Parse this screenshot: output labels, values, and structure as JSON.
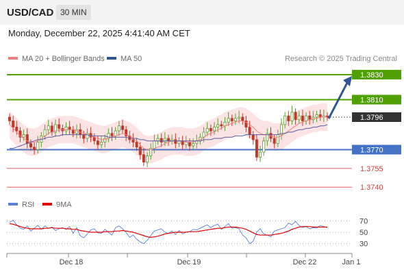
{
  "header": {
    "symbol": "USD/CAD",
    "timeframe": "30 MIN"
  },
  "timestamp": "Monday, December 22, 2025 4:41:40 AM CET",
  "legend": {
    "bollinger": {
      "label": "MA 20 + Bollinger Bands",
      "color": "#f08080"
    },
    "ma50": {
      "label": "MA 50",
      "color": "#2f5597"
    }
  },
  "copyright": "Research © 2025 Trading Central",
  "rsi_legend": {
    "rsi": {
      "label": "RSI",
      "color": "#5b7fd6"
    },
    "ma": {
      "label": "9MA",
      "color": "#e00000"
    }
  },
  "chart_data": [
    {
      "type": "candlestick",
      "title": "USD/CAD 30 MIN",
      "ylim": [
        1.3733,
        1.3836
      ],
      "x_ticks": [
        "Dec 18",
        "Dec 19",
        "Dec 22",
        "Jan 1"
      ],
      "levels": [
        {
          "value": 1.383,
          "label": "1.3830",
          "kind": "resistance",
          "color": "#4fa000"
        },
        {
          "value": 1.381,
          "label": "1.3810",
          "kind": "resistance",
          "color": "#4fa000"
        },
        {
          "value": 1.3796,
          "label": "1.3796",
          "kind": "last",
          "color": "#333333"
        },
        {
          "value": 1.377,
          "label": "1.3770",
          "kind": "pivot",
          "color": "#4472c4"
        },
        {
          "value": 1.3755,
          "label": "1.3755",
          "kind": "support",
          "color": "#e06060"
        },
        {
          "value": 1.374,
          "label": "1.3740",
          "kind": "support",
          "color": "#e06060"
        }
      ],
      "projection": {
        "from": 1.3796,
        "to": 1.383,
        "color": "#2f5597"
      },
      "series_close": [
        1.3793,
        1.3788,
        1.3785,
        1.378,
        1.3782,
        1.3775,
        1.3772,
        1.377,
        1.3776,
        1.3781,
        1.3786,
        1.3789,
        1.3784,
        1.379,
        1.3787,
        1.3785,
        1.3788,
        1.3786,
        1.3783,
        1.3786,
        1.3782,
        1.3779,
        1.3783,
        1.378,
        1.3777,
        1.3774,
        1.3776,
        1.3779,
        1.3783,
        1.3781,
        1.3785,
        1.3789,
        1.3786,
        1.3781,
        1.3778,
        1.3776,
        1.3772,
        1.3766,
        1.376,
        1.3765,
        1.3771,
        1.3777,
        1.3779,
        1.3776,
        1.3779,
        1.3777,
        1.3778,
        1.3775,
        1.3777,
        1.3774,
        1.3776,
        1.3773,
        1.3775,
        1.3777,
        1.378,
        1.3784,
        1.3787,
        1.3785,
        1.3788,
        1.379,
        1.3789,
        1.3792,
        1.3795,
        1.3793,
        1.3795,
        1.3796,
        1.3793,
        1.3788,
        1.3782,
        1.3778,
        1.3764,
        1.3768,
        1.3777,
        1.3783,
        1.3779,
        1.3775,
        1.3782,
        1.379,
        1.3797,
        1.3793,
        1.38,
        1.3794,
        1.3797,
        1.3793,
        1.3797,
        1.3794,
        1.3796,
        1.3798,
        1.3796,
        1.3797,
        1.3796
      ],
      "ma20": [
        1.379,
        1.3787,
        1.3784,
        1.3781,
        1.3779,
        1.3777,
        1.3776,
        1.3776,
        1.3777,
        1.3779,
        1.3781,
        1.3783,
        1.3784,
        1.3785,
        1.3786,
        1.3786,
        1.3786,
        1.3786,
        1.3786,
        1.3785,
        1.3784,
        1.3783,
        1.3782,
        1.3781,
        1.378,
        1.3779,
        1.3778,
        1.3778,
        1.3779,
        1.378,
        1.3781,
        1.3782,
        1.3783,
        1.3782,
        1.3781,
        1.3779,
        1.3777,
        1.3774,
        1.3771,
        1.377,
        1.377,
        1.3771,
        1.3772,
        1.3773,
        1.3775,
        1.3776,
        1.3777,
        1.3777,
        1.3777,
        1.3777,
        1.3776,
        1.3776,
        1.3776,
        1.3777,
        1.3778,
        1.378,
        1.3782,
        1.3783,
        1.3784,
        1.3786,
        1.3787,
        1.3789,
        1.379,
        1.3791,
        1.3792,
        1.3793,
        1.3793,
        1.3792,
        1.379,
        1.3788,
        1.3785,
        1.3783,
        1.3782,
        1.3782,
        1.3781,
        1.378,
        1.378,
        1.3781,
        1.3783,
        1.3785,
        1.3787,
        1.3789,
        1.3791,
        1.3792,
        1.3793,
        1.3794,
        1.3795,
        1.3795,
        1.3796,
        1.3796,
        1.3796
      ],
      "ma50": [
        1.3771,
        1.3771,
        1.3772,
        1.3773,
        1.3774,
        1.3775,
        1.3776,
        1.3777,
        1.3778,
        1.3778,
        1.3779,
        1.378,
        1.378,
        1.3781,
        1.3781,
        1.3782,
        1.3782,
        1.3782,
        1.3782,
        1.3782,
        1.3782,
        1.3782,
        1.3782,
        1.3781,
        1.3781,
        1.3781,
        1.3781,
        1.3781,
        1.378,
        1.378,
        1.378,
        1.378,
        1.378,
        1.378,
        1.3779,
        1.3779,
        1.3779,
        1.3778,
        1.3778,
        1.3777,
        1.3777,
        1.3777,
        1.3777,
        1.3777,
        1.3777,
        1.3777,
        1.3777,
        1.3777,
        1.3777,
        1.3777,
        1.3777,
        1.3777,
        1.3777,
        1.3777,
        1.3777,
        1.3778,
        1.3778,
        1.3778,
        1.3779,
        1.3779,
        1.3779,
        1.378,
        1.378,
        1.378,
        1.3781,
        1.3781,
        1.3781,
        1.3782,
        1.3782,
        1.3782,
        1.3782,
        1.3782,
        1.3782,
        1.3782,
        1.3782,
        1.3782,
        1.3782,
        1.3783,
        1.3783,
        1.3784,
        1.3784,
        1.3785,
        1.3786,
        1.3786,
        1.3787,
        1.3787,
        1.3788,
        1.3788,
        1.3789,
        1.3789,
        1.379
      ],
      "band_width": 0.0011
    },
    {
      "type": "line",
      "title": "RSI",
      "ylim": [
        20,
        80
      ],
      "y_ticks": [
        70,
        50,
        30
      ],
      "series": [
        {
          "name": "RSI",
          "color": "#5b7fd6",
          "values": [
            67,
            71,
            63,
            57,
            55,
            61,
            52,
            57,
            62,
            55,
            61,
            57,
            59,
            53,
            56,
            58,
            55,
            60,
            48,
            58,
            44,
            40,
            47,
            54,
            56,
            49,
            48,
            55,
            50,
            45,
            58,
            61,
            56,
            50,
            41,
            45,
            38,
            33,
            30,
            36,
            44,
            52,
            54,
            56,
            50,
            48,
            52,
            46,
            53,
            47,
            50,
            51,
            55,
            54,
            57,
            60,
            63,
            58,
            62,
            64,
            55,
            60,
            65,
            57,
            58,
            56,
            45,
            40,
            30,
            34,
            50,
            56,
            47,
            45,
            42,
            52,
            54,
            56,
            58,
            66,
            63,
            69,
            62,
            58,
            60,
            56,
            58,
            57,
            62,
            60,
            58
          ]
        },
        {
          "name": "9MA",
          "color": "#e00000",
          "values": [
            65,
            64,
            62,
            60,
            58,
            57,
            56,
            56,
            56,
            56,
            57,
            57,
            58,
            57,
            57,
            57,
            56,
            56,
            55,
            55,
            53,
            52,
            51,
            50,
            50,
            50,
            50,
            51,
            51,
            51,
            52,
            52,
            53,
            52,
            51,
            50,
            48,
            46,
            44,
            42,
            41,
            42,
            43,
            45,
            47,
            48,
            49,
            50,
            50,
            50,
            50,
            51,
            51,
            51,
            52,
            53,
            54,
            55,
            56,
            57,
            57,
            58,
            59,
            59,
            59,
            58,
            57,
            55,
            52,
            49,
            46,
            45,
            45,
            45,
            45,
            46,
            47,
            48,
            50,
            52,
            55,
            57,
            59,
            60,
            60,
            60,
            59,
            59,
            59,
            59,
            59
          ]
        }
      ]
    }
  ]
}
